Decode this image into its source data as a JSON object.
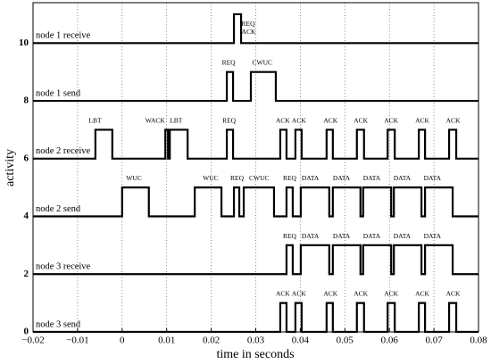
{
  "chart_data": {
    "type": "line",
    "xlabel": "time in seconds",
    "ylabel": "activity",
    "xlim": [
      -0.02,
      0.08
    ],
    "xticks": [
      {
        "value": -0.02,
        "label": "−0.02"
      },
      {
        "value": -0.01,
        "label": "−0.01"
      },
      0,
      0.01,
      0.02,
      0.03,
      0.04,
      0.05,
      0.06,
      0.07,
      0.08
    ],
    "ylim": [
      0,
      11.4
    ],
    "yticks": [
      0,
      2,
      4,
      6,
      8,
      10
    ],
    "grid": "x",
    "color": "#000000",
    "series": [
      {
        "name": "node 1 receive",
        "x": [
          -0.02,
          0.0251,
          0.0251,
          0.0267,
          0.0267,
          0.08
        ],
        "values": [
          10,
          10,
          11,
          11,
          10,
          10
        ]
      },
      {
        "name": "node 1 send",
        "x": [
          -0.02,
          0.0235,
          0.0235,
          0.0249,
          0.0249,
          0.0289,
          0.0289,
          0.0345,
          0.0345,
          0.08
        ],
        "values": [
          8,
          8,
          9,
          9,
          8,
          8,
          9,
          9,
          8,
          8
        ]
      },
      {
        "name": "node 2 receive",
        "x": [
          -0.02,
          -0.006,
          -0.006,
          -0.0022,
          -0.0022,
          0.0097,
          0.0097,
          0.0103,
          0.0103,
          0.0107,
          0.0107,
          0.0147,
          0.0147,
          0.0235,
          0.0235,
          0.0249,
          0.0249,
          0.0355,
          0.0355,
          0.0369,
          0.0369,
          0.0389,
          0.0389,
          0.0403,
          0.0403,
          0.0459,
          0.0459,
          0.0473,
          0.0473,
          0.0527,
          0.0527,
          0.0543,
          0.0543,
          0.0596,
          0.0596,
          0.0612,
          0.0612,
          0.0666,
          0.0666,
          0.068,
          0.068,
          0.0734,
          0.0734,
          0.075,
          0.075,
          0.08
        ],
        "values": [
          6,
          6,
          7,
          7,
          6,
          6,
          7,
          7,
          6,
          6,
          7,
          7,
          6,
          6,
          7,
          7,
          6,
          6,
          7,
          7,
          6,
          6,
          7,
          7,
          6,
          6,
          7,
          7,
          6,
          6,
          7,
          7,
          6,
          6,
          7,
          7,
          6,
          6,
          7,
          7,
          6,
          6,
          7,
          7,
          6,
          6
        ]
      },
      {
        "name": "node 2 send",
        "x": [
          -0.02,
          0,
          0,
          0.006,
          0.006,
          0.0163,
          0.0163,
          0.0223,
          0.0223,
          0.0251,
          0.0251,
          0.0263,
          0.0263,
          0.0273,
          0.0273,
          0.0341,
          0.0341,
          0.0369,
          0.0369,
          0.0383,
          0.0383,
          0.0401,
          0.0401,
          0.0465,
          0.0465,
          0.0473,
          0.0473,
          0.0535,
          0.0535,
          0.0541,
          0.0541,
          0.0604,
          0.0604,
          0.061,
          0.061,
          0.0672,
          0.0672,
          0.068,
          0.068,
          0.0742,
          0.0742,
          0.08
        ],
        "values": [
          4,
          4,
          5,
          5,
          4,
          4,
          5,
          5,
          4,
          4,
          5,
          5,
          4,
          4,
          5,
          5,
          4,
          4,
          5,
          5,
          4,
          4,
          5,
          5,
          4,
          4,
          5,
          5,
          4,
          4,
          5,
          5,
          4,
          4,
          5,
          5,
          4,
          4,
          5,
          5,
          4,
          4
        ]
      },
      {
        "name": "node 3 receive",
        "x": [
          -0.02,
          0.0369,
          0.0369,
          0.0383,
          0.0383,
          0.0401,
          0.0401,
          0.0465,
          0.0465,
          0.0473,
          0.0473,
          0.0535,
          0.0535,
          0.0541,
          0.0541,
          0.0604,
          0.0604,
          0.061,
          0.061,
          0.0672,
          0.0672,
          0.068,
          0.068,
          0.0742,
          0.0742,
          0.08
        ],
        "values": [
          2,
          2,
          3,
          3,
          2,
          2,
          3,
          3,
          2,
          2,
          3,
          3,
          2,
          2,
          3,
          3,
          2,
          2,
          3,
          3,
          2,
          2,
          3,
          3,
          2,
          2
        ]
      },
      {
        "name": "node 3 send",
        "x": [
          -0.02,
          0.0355,
          0.0355,
          0.0369,
          0.0369,
          0.0389,
          0.0389,
          0.0403,
          0.0403,
          0.0459,
          0.0459,
          0.0473,
          0.0473,
          0.0527,
          0.0527,
          0.0543,
          0.0543,
          0.0596,
          0.0596,
          0.0612,
          0.0612,
          0.0666,
          0.0666,
          0.068,
          0.068,
          0.0734,
          0.0734,
          0.075,
          0.075,
          0.08
        ],
        "values": [
          0,
          0,
          1,
          1,
          0,
          0,
          1,
          1,
          0,
          0,
          1,
          1,
          0,
          0,
          1,
          1,
          0,
          0,
          1,
          1,
          0,
          0,
          1,
          1,
          0,
          0,
          1,
          1,
          0,
          0
        ]
      }
    ],
    "annotations": [
      {
        "text": "REQ",
        "x": 0.0268,
        "y": 10.65
      },
      {
        "text": "ACK",
        "x": 0.0268,
        "y": 10.37
      },
      {
        "text": "REQ",
        "x": 0.0224,
        "y": 9.3
      },
      {
        "text": "CWUC",
        "x": 0.0292,
        "y": 9.3
      },
      {
        "text": "LBT",
        "x": -0.0075,
        "y": 7.3
      },
      {
        "text": "WACK",
        "x": 0.0052,
        "y": 7.3
      },
      {
        "text": "LBT",
        "x": 0.0107,
        "y": 7.3
      },
      {
        "text": "REQ",
        "x": 0.0225,
        "y": 7.3
      },
      {
        "text": "ACK",
        "x": 0.0345,
        "y": 7.3
      },
      {
        "text": "ACK",
        "x": 0.0381,
        "y": 7.3
      },
      {
        "text": "ACK",
        "x": 0.0452,
        "y": 7.3
      },
      {
        "text": "ACK",
        "x": 0.052,
        "y": 7.3
      },
      {
        "text": "ACK",
        "x": 0.0588,
        "y": 7.3
      },
      {
        "text": "ACK",
        "x": 0.0658,
        "y": 7.3
      },
      {
        "text": "ACK",
        "x": 0.0727,
        "y": 7.3
      },
      {
        "text": "WUC",
        "x": 0.0009,
        "y": 5.3
      },
      {
        "text": "WUC",
        "x": 0.0181,
        "y": 5.3
      },
      {
        "text": "REQ",
        "x": 0.0243,
        "y": 5.3
      },
      {
        "text": "CWUC",
        "x": 0.0285,
        "y": 5.3
      },
      {
        "text": "REQ",
        "x": 0.0361,
        "y": 5.3
      },
      {
        "text": "DATA",
        "x": 0.0403,
        "y": 5.3
      },
      {
        "text": "DATA",
        "x": 0.0473,
        "y": 5.3
      },
      {
        "text": "DATA",
        "x": 0.0541,
        "y": 5.3
      },
      {
        "text": "DATA",
        "x": 0.0609,
        "y": 5.3
      },
      {
        "text": "DATA",
        "x": 0.0677,
        "y": 5.3
      },
      {
        "text": "REQ",
        "x": 0.0361,
        "y": 3.3
      },
      {
        "text": "DATA",
        "x": 0.0403,
        "y": 3.3
      },
      {
        "text": "DATA",
        "x": 0.0473,
        "y": 3.3
      },
      {
        "text": "DATA",
        "x": 0.0541,
        "y": 3.3
      },
      {
        "text": "DATA",
        "x": 0.0609,
        "y": 3.3
      },
      {
        "text": "DATA",
        "x": 0.0677,
        "y": 3.3
      },
      {
        "text": "ACK",
        "x": 0.0345,
        "y": 1.3
      },
      {
        "text": "ACK",
        "x": 0.0381,
        "y": 1.3
      },
      {
        "text": "ACK",
        "x": 0.0452,
        "y": 1.3
      },
      {
        "text": "ACK",
        "x": 0.052,
        "y": 1.3
      },
      {
        "text": "ACK",
        "x": 0.0588,
        "y": 1.3
      },
      {
        "text": "ACK",
        "x": 0.0658,
        "y": 1.3
      },
      {
        "text": "ACK",
        "x": 0.0727,
        "y": 1.3
      }
    ]
  }
}
